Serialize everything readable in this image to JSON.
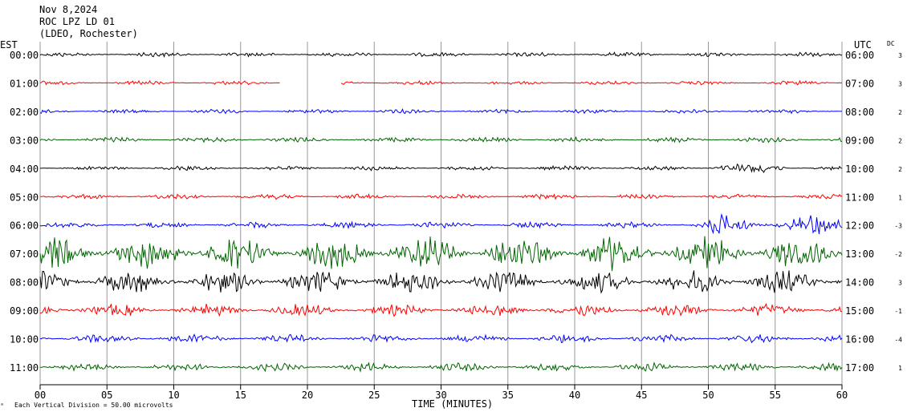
{
  "header": {
    "date": "Nov 8,2024",
    "station": "ROC LPZ LD 01",
    "network": "(LDEO, Rochester)"
  },
  "chart_data": {
    "type": "line",
    "left_timezone": "EST",
    "right_timezone": "UTC",
    "dc_label": "DC",
    "xlabel": "TIME (MINUTES)",
    "x_ticks": [
      "00",
      "05",
      "10",
      "15",
      "20",
      "25",
      "30",
      "35",
      "40",
      "45",
      "50",
      "55",
      "60"
    ],
    "xlim": [
      0,
      60
    ],
    "scale_note": "Each Vertical Division =   50.00 microvolts",
    "traces": [
      {
        "est": "00:00",
        "utc": "06:00",
        "dc": "3",
        "color": "#000000",
        "amp": 2.2,
        "gap": null
      },
      {
        "est": "01:00",
        "utc": "07:00",
        "dc": "3",
        "color": "#ff0000",
        "amp": 2.0,
        "gap": [
          18.0,
          22.5
        ]
      },
      {
        "est": "02:00",
        "utc": "08:00",
        "dc": "2",
        "color": "#0000ff",
        "amp": 2.0,
        "gap": null
      },
      {
        "est": "03:00",
        "utc": "09:00",
        "dc": "2",
        "color": "#006400",
        "amp": 2.5,
        "gap": null
      },
      {
        "est": "04:00",
        "utc": "10:00",
        "dc": "2",
        "color": "#000000",
        "amp": 2.2,
        "gap": null
      },
      {
        "est": "05:00",
        "utc": "11:00",
        "dc": "1",
        "color": "#ff0000",
        "amp": 2.5,
        "gap": null
      },
      {
        "est": "06:00",
        "utc": "12:00",
        "dc": "-3",
        "color": "#0000ff",
        "amp": 3.0,
        "gap": null
      },
      {
        "est": "07:00",
        "utc": "13:00",
        "dc": "-2",
        "color": "#006400",
        "amp": 16,
        "gap": null
      },
      {
        "est": "08:00",
        "utc": "14:00",
        "dc": "3",
        "color": "#000000",
        "amp": 11,
        "gap": null
      },
      {
        "est": "09:00",
        "utc": "15:00",
        "dc": "-1",
        "color": "#ff0000",
        "amp": 6,
        "gap": null
      },
      {
        "est": "10:00",
        "utc": "16:00",
        "dc": "-4",
        "color": "#0000ff",
        "amp": 4,
        "gap": null
      },
      {
        "est": "11:00",
        "utc": "17:00",
        "dc": "1",
        "color": "#006400",
        "amp": 4,
        "gap": null
      }
    ]
  }
}
